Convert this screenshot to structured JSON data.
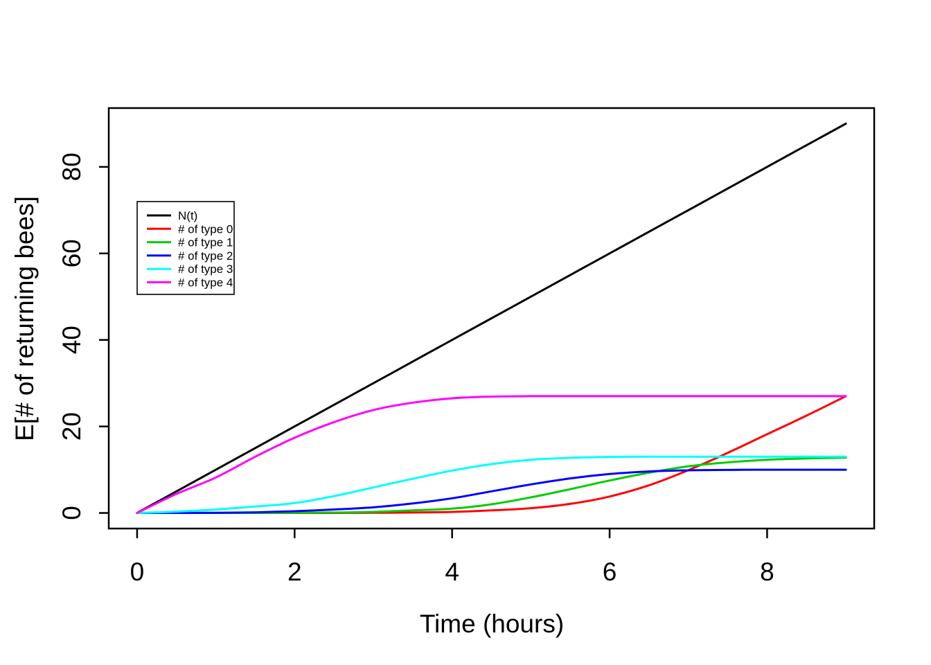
{
  "chart_data": {
    "type": "line",
    "title": "",
    "xlabel": "Time (hours)",
    "ylabel": "E[# of returning bees]",
    "xlim": [
      -0.36,
      9.36
    ],
    "ylim": [
      -3.6,
      93.6
    ],
    "x_ticks": [
      "0",
      "2",
      "4",
      "6",
      "8"
    ],
    "x_tick_values": [
      0,
      2,
      4,
      6,
      8
    ],
    "y_ticks": [
      "0",
      "20",
      "40",
      "60",
      "80"
    ],
    "y_tick_values": [
      0,
      20,
      40,
      60,
      80
    ],
    "grid": false,
    "legend_position": "upper-left-inside",
    "background_color": "#FFFFFF",
    "axis_color": "#000000",
    "x": [
      0,
      0.5,
      1,
      1.5,
      2,
      2.5,
      3,
      3.5,
      4,
      4.5,
      5,
      5.5,
      6,
      6.5,
      7,
      7.5,
      8,
      8.5,
      9
    ],
    "series": [
      {
        "name": "N(t)",
        "color": "#000000",
        "values": [
          0,
          5,
          10,
          15,
          20,
          25,
          30,
          35,
          40,
          45,
          50,
          55,
          60,
          65,
          70,
          75,
          80,
          85,
          90
        ]
      },
      {
        "name": "# of type 0",
        "color": "#FF0000",
        "values": [
          0,
          0,
          0,
          0,
          0,
          0.01,
          0.03,
          0.1,
          0.25,
          0.6,
          1.1,
          2.1,
          3.8,
          6.4,
          9.9,
          13.9,
          18.2,
          22.5,
          27
        ]
      },
      {
        "name": "# of type 1",
        "color": "#00CD00",
        "values": [
          0,
          0,
          0,
          0.01,
          0.03,
          0.1,
          0.25,
          0.6,
          1.0,
          2.0,
          3.6,
          5.5,
          7.5,
          9.3,
          10.8,
          11.7,
          12.3,
          12.6,
          12.8
        ]
      },
      {
        "name": "# of type 2",
        "color": "#0000FF",
        "values": [
          0,
          0.01,
          0.05,
          0.15,
          0.4,
          0.8,
          1.3,
          2.2,
          3.4,
          5.0,
          6.6,
          8.0,
          9.0,
          9.6,
          9.85,
          9.95,
          10,
          10,
          10
        ]
      },
      {
        "name": "# of type 3",
        "color": "#00FFFF",
        "values": [
          0,
          0.3,
          0.8,
          1.5,
          2.3,
          3.9,
          5.9,
          7.9,
          9.8,
          11.3,
          12.3,
          12.75,
          12.95,
          13,
          13,
          13,
          13,
          13,
          13
        ]
      },
      {
        "name": "# of type 4",
        "color": "#FF00FF",
        "values": [
          0,
          4.4,
          8.2,
          13,
          17.4,
          21,
          23.8,
          25.5,
          26.5,
          26.9,
          27,
          27,
          27,
          27,
          27,
          27,
          27,
          27,
          27
        ]
      }
    ]
  }
}
